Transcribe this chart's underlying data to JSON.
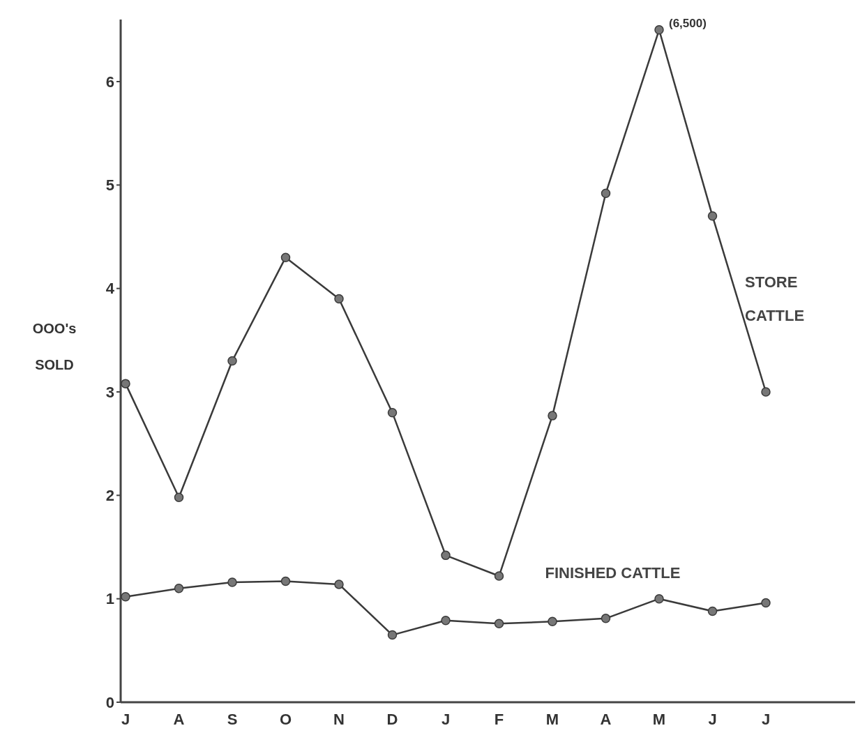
{
  "chart_data": {
    "type": "line",
    "ylabel": "OOO's SOLD",
    "categories": [
      "J",
      "A",
      "S",
      "O",
      "N",
      "D",
      "J",
      "F",
      "M",
      "A",
      "M",
      "J",
      "J"
    ],
    "series": [
      {
        "name": "STORE CATTLE",
        "color": "#3a3a3a",
        "values": [
          3.08,
          1.98,
          3.3,
          4.3,
          3.9,
          2.8,
          1.42,
          1.22,
          2.77,
          4.92,
          6.5,
          4.7,
          3.0
        ]
      },
      {
        "name": "FINISHED CATTLE",
        "color": "#3a3a3a",
        "values": [
          1.02,
          1.1,
          1.16,
          1.17,
          1.14,
          0.65,
          0.79,
          0.76,
          0.78,
          0.81,
          1.0,
          0.88,
          0.96
        ]
      }
    ],
    "ylim": [
      0,
      6.6
    ],
    "yticks": [
      0,
      1,
      2,
      3,
      4,
      5,
      6
    ],
    "annotations": [
      "(6,500)"
    ],
    "grid": false,
    "marker": "circle",
    "line_style": "solid"
  }
}
